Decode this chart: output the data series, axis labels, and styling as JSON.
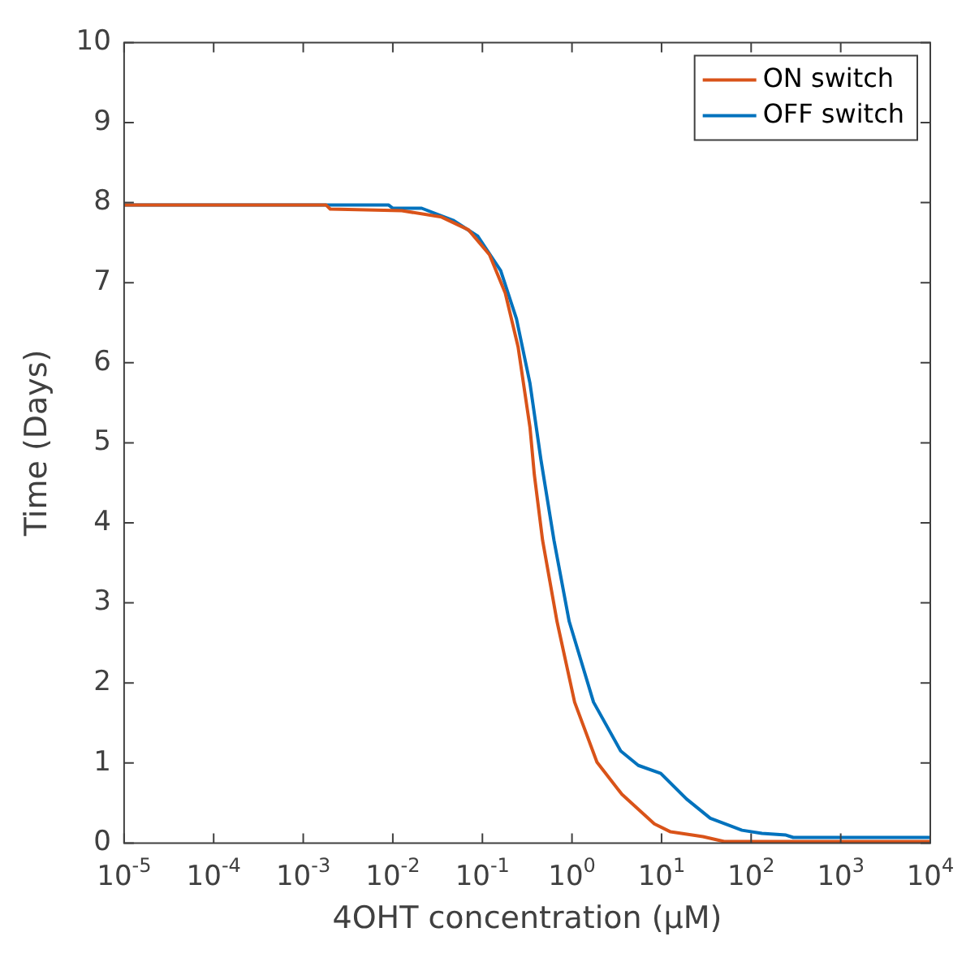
{
  "chart_data": {
    "type": "line",
    "xlabel": "4OHT concentration (μM)",
    "ylabel": "Time (Days)",
    "log": "x",
    "xlim": [
      1e-05,
      10000
    ],
    "ylim": [
      0,
      10
    ],
    "xticks": [
      {
        "value": 1e-05,
        "label": "10$^{-5}$"
      },
      {
        "value": 0.0001,
        "label": "10$^{-4}$"
      },
      {
        "value": 0.001,
        "label": "10$^{-3}$"
      },
      {
        "value": 0.01,
        "label": "10$^{-2}$"
      },
      {
        "value": 0.1,
        "label": "10$^{-1}$"
      },
      {
        "value": 1,
        "label": "10$^{0}$"
      },
      {
        "value": 10,
        "label": "10$^{1}$"
      },
      {
        "value": 100,
        "label": "10$^{2}$"
      },
      {
        "value": 1000,
        "label": "10$^{3}$"
      },
      {
        "value": 10000,
        "label": "10$^{4}$"
      }
    ],
    "yticks": [
      0,
      1,
      2,
      3,
      4,
      5,
      6,
      7,
      8,
      9,
      10
    ],
    "grid": false,
    "legend": "top right",
    "marker": "none",
    "line_style": "solid",
    "series": [
      {
        "name": "ON switch",
        "color": "#d95319",
        "x": [
          1e-05,
          0.0018,
          0.002,
          0.0126,
          0.035,
          0.07,
          0.12,
          0.18,
          0.25,
          0.34,
          0.38,
          0.47,
          0.68,
          1.07,
          1.9,
          3.6,
          8.3,
          12.6,
          22,
          29,
          50,
          10000
        ],
        "values": [
          7.97,
          7.97,
          7.92,
          7.9,
          7.82,
          7.66,
          7.35,
          6.87,
          6.2,
          5.19,
          4.6,
          3.78,
          2.77,
          1.76,
          1.01,
          0.61,
          0.24,
          0.14,
          0.1,
          0.08,
          0.02,
          0.02
        ]
      },
      {
        "name": "OFF switch",
        "color": "#0072bd",
        "x": [
          1e-05,
          0.009,
          0.01,
          0.021,
          0.047,
          0.089,
          0.16,
          0.24,
          0.34,
          0.45,
          0.63,
          0.93,
          1.74,
          3.5,
          5.5,
          9.8,
          19,
          35,
          79,
          132,
          245,
          295,
          10000
        ],
        "values": [
          7.97,
          7.97,
          7.93,
          7.93,
          7.78,
          7.58,
          7.15,
          6.55,
          5.74,
          4.79,
          3.78,
          2.77,
          1.76,
          1.15,
          0.97,
          0.87,
          0.55,
          0.31,
          0.16,
          0.12,
          0.1,
          0.07,
          0.07
        ]
      }
    ]
  }
}
